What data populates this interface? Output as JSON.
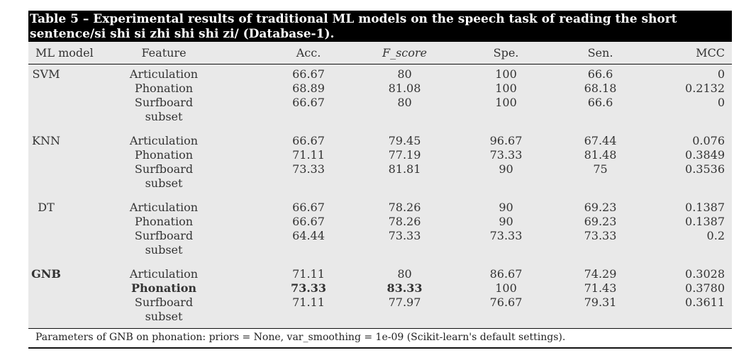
{
  "caption": "Table 5 – Experimental results of traditional ML models on the speech task of reading the short sentence/si shi si zhi shi shi zi/ (Database-1).",
  "headers": [
    "ML model",
    "Feature",
    "Acc.",
    "F_score",
    "Spe.",
    "Sen.",
    "MCC"
  ],
  "groups": [
    {
      "model": "SVM",
      "rows": [
        {
          "feature": "Articulation",
          "acc": "66.67",
          "f": "80",
          "spe": "100",
          "sen": "66.6",
          "mcc": "0"
        },
        {
          "feature": "Phonation",
          "acc": "68.89",
          "f": "81.08",
          "spe": "100",
          "sen": "68.18",
          "mcc": "0.2132"
        },
        {
          "feature": "Surfboard",
          "acc": "66.67",
          "f": "80",
          "spe": "100",
          "sen": "66.6",
          "mcc": "0"
        },
        {
          "feature": "subset",
          "acc": "",
          "f": "",
          "spe": "",
          "sen": "",
          "mcc": ""
        }
      ]
    },
    {
      "model": "KNN",
      "rows": [
        {
          "feature": "Articulation",
          "acc": "66.67",
          "f": "79.45",
          "spe": "96.67",
          "sen": "67.44",
          "mcc": "0.076"
        },
        {
          "feature": "Phonation",
          "acc": "71.11",
          "f": "77.19",
          "spe": "73.33",
          "sen": "81.48",
          "mcc": "0.3849"
        },
        {
          "feature": "Surfboard",
          "acc": "73.33",
          "f": "81.81",
          "spe": "90",
          "sen": "75",
          "mcc": "0.3536"
        },
        {
          "feature": "subset",
          "acc": "",
          "f": "",
          "spe": "",
          "sen": "",
          "mcc": ""
        }
      ]
    },
    {
      "model": "DT",
      "rows": [
        {
          "feature": "Articulation",
          "acc": "66.67",
          "f": "78.26",
          "spe": "90",
          "sen": "69.23",
          "mcc": "0.1387"
        },
        {
          "feature": "Phonation",
          "acc": "66.67",
          "f": "78.26",
          "spe": "90",
          "sen": "69.23",
          "mcc": "0.1387"
        },
        {
          "feature": "Surfboard",
          "acc": "64.44",
          "f": "73.33",
          "spe": "73.33",
          "sen": "73.33",
          "mcc": "0.2"
        },
        {
          "feature": "subset",
          "acc": "",
          "f": "",
          "spe": "",
          "sen": "",
          "mcc": ""
        }
      ]
    },
    {
      "model": "GNB",
      "rows": [
        {
          "feature": "Articulation",
          "acc": "71.11",
          "f": "80",
          "spe": "86.67",
          "sen": "74.29",
          "mcc": "0.3028"
        },
        {
          "feature": "Phonation",
          "acc": "73.33",
          "f": "83.33",
          "spe": "100",
          "sen": "71.43",
          "mcc": "0.3780"
        },
        {
          "feature": "Surfboard",
          "acc": "71.11",
          "f": "77.97",
          "spe": "76.67",
          "sen": "79.31",
          "mcc": "0.3611"
        },
        {
          "feature": "subset",
          "acc": "",
          "f": "",
          "spe": "",
          "sen": "",
          "mcc": ""
        }
      ]
    }
  ],
  "footer": "Parameters of GNB on phonation: priors = None, var_smoothing = 1e-09 (Scikit-learn's default settings)."
}
